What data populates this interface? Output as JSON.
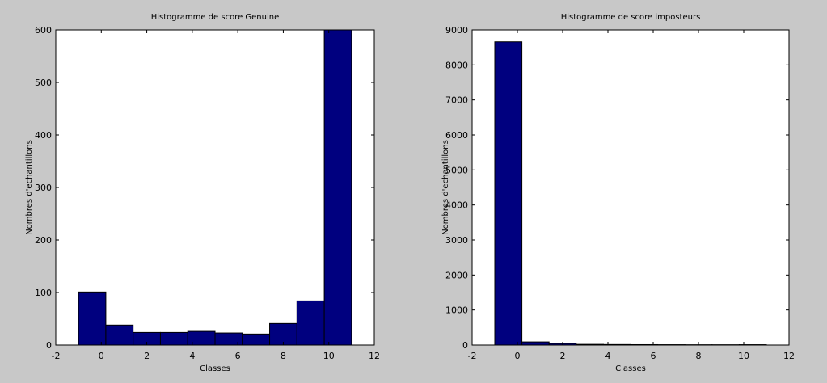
{
  "figure": {
    "background": "#c8c8c8"
  },
  "chart_data": [
    {
      "type": "bar",
      "title": "Histogramme de score Genuine",
      "xlabel": "Classes",
      "ylabel": "Nombres d'echantillons",
      "xlim": [
        -2,
        12
      ],
      "ylim": [
        0,
        600
      ],
      "xticks": [
        -2,
        0,
        2,
        4,
        6,
        8,
        10,
        12
      ],
      "yticks": [
        0,
        100,
        200,
        300,
        400,
        500,
        600
      ],
      "bin_edges": [
        -1,
        0.2,
        1.4,
        2.6,
        3.8,
        5.0,
        6.2,
        7.4,
        8.6,
        9.8,
        11
      ],
      "values": [
        101,
        38,
        24,
        24,
        26,
        23,
        21,
        41,
        84,
        600
      ],
      "bar_color": "#00007f",
      "grid": false
    },
    {
      "type": "bar",
      "title": "Histogramme de score imposteurs",
      "xlabel": "Classes",
      "ylabel": "Nombres d'echantillons",
      "xlim": [
        -2,
        12
      ],
      "ylim": [
        0,
        9000
      ],
      "xticks": [
        -2,
        0,
        2,
        4,
        6,
        8,
        10,
        12
      ],
      "yticks": [
        0,
        1000,
        2000,
        3000,
        4000,
        5000,
        6000,
        7000,
        8000,
        9000
      ],
      "bin_edges": [
        -1,
        0.2,
        1.4,
        2.6,
        3.8,
        5.0,
        6.2,
        7.4,
        8.6,
        9.8,
        11
      ],
      "values": [
        8660,
        90,
        45,
        20,
        15,
        12,
        10,
        8,
        8,
        10
      ],
      "bar_color": "#00007f",
      "grid": false
    }
  ]
}
